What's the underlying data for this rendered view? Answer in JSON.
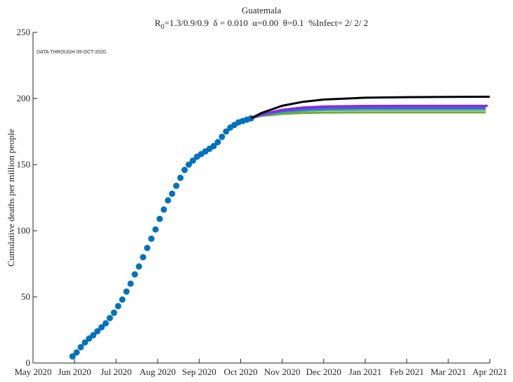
{
  "chart_data": {
    "type": "line",
    "title": "Guatemala",
    "subtitle": {
      "base": "R",
      "subscript": "0",
      "text": "=1.3/0.9/0.9  δ = 0.010  α=0.00  θ=0.1  %Infect= 2/ 2/ 2"
    },
    "annotation": "DATA THROUGH 09-OCT-2020",
    "ylabel": "Cumulative deaths per million people",
    "xlim": [
      0,
      11
    ],
    "xticks": [
      {
        "value": 0,
        "label": "May 2020"
      },
      {
        "value": 1,
        "label": "Jun 2020"
      },
      {
        "value": 2,
        "label": "Jul 2020"
      },
      {
        "value": 3,
        "label": "Aug 2020"
      },
      {
        "value": 4,
        "label": "Sep 2020"
      },
      {
        "value": 5,
        "label": "Oct 2020"
      },
      {
        "value": 6,
        "label": "Nov 2020"
      },
      {
        "value": 7,
        "label": "Dec 2020"
      },
      {
        "value": 8,
        "label": "Jan 2021"
      },
      {
        "value": 9,
        "label": "Feb 2021"
      },
      {
        "value": 10,
        "label": "Mar 2021"
      },
      {
        "value": 11,
        "label": "Apr 2021"
      }
    ],
    "ylim": [
      0,
      250
    ],
    "yticks": [
      0,
      50,
      100,
      150,
      200,
      250
    ],
    "series": [
      {
        "style": "markers",
        "color": "#0072bd",
        "x": [
          0.95,
          1.05,
          1.15,
          1.25,
          1.35,
          1.45,
          1.55,
          1.65,
          1.75,
          1.85,
          1.95,
          2.05,
          2.15,
          2.25,
          2.35,
          2.45,
          2.55,
          2.65,
          2.75,
          2.85,
          2.95,
          3.05,
          3.15,
          3.25,
          3.35,
          3.45,
          3.55,
          3.65,
          3.75,
          3.85,
          3.95,
          4.05,
          4.15,
          4.25,
          4.35,
          4.45,
          4.55,
          4.65,
          4.75,
          4.85,
          4.95,
          5.05,
          5.15,
          5.25
        ],
        "values": [
          5,
          8,
          12,
          15.5,
          18.5,
          21,
          24,
          27,
          30,
          34,
          38,
          43,
          48,
          54,
          60,
          67,
          73,
          80,
          87,
          94,
          101,
          109,
          116,
          123,
          128,
          134,
          140,
          146,
          150,
          153,
          156,
          158,
          160,
          162,
          164,
          167,
          171,
          175,
          178,
          180,
          182,
          183,
          184,
          185
        ]
      },
      {
        "style": "line",
        "color": "#77ac30",
        "x": [
          5.25,
          5.5,
          6,
          6.5,
          7,
          8,
          9,
          10,
          10.9
        ],
        "values": [
          185,
          186.8,
          188.3,
          189,
          189.3,
          189.5,
          189.5,
          189.5,
          189.5
        ]
      },
      {
        "style": "line",
        "color": "#3aa39a",
        "x": [
          5.25,
          5.5,
          6,
          6.5,
          7,
          8,
          9,
          10,
          10.9
        ],
        "values": [
          185,
          187.3,
          189.5,
          190.7,
          191.2,
          191.5,
          191.5,
          191.5,
          191.5
        ]
      },
      {
        "style": "line",
        "color": "#4a5ad6",
        "x": [
          5.25,
          5.5,
          6,
          6.5,
          7,
          8,
          9,
          10,
          10.9
        ],
        "values": [
          185,
          187.7,
          190.5,
          192,
          192.6,
          193,
          193,
          193,
          193
        ]
      },
      {
        "style": "line",
        "color": "#8a2be2",
        "x": [
          5.25,
          5.5,
          6,
          6.5,
          7,
          8,
          9,
          10,
          10.95
        ],
        "values": [
          185,
          188,
          191.5,
          193.2,
          194,
          194.4,
          194.5,
          194.5,
          194.5
        ]
      },
      {
        "style": "line",
        "color": "#000000",
        "x": [
          5.25,
          5.5,
          6,
          6.5,
          7,
          8,
          9,
          10,
          11
        ],
        "values": [
          185,
          189,
          194.5,
          197.5,
          199.2,
          200.6,
          201,
          201.2,
          201.3
        ]
      }
    ]
  }
}
